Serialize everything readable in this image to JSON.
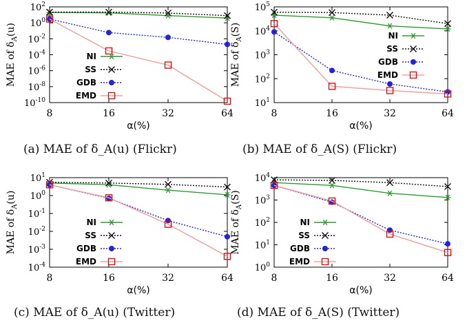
{
  "colors": {
    "NI": "#2e9a2e",
    "SS": "#111111",
    "GDB": "#2323d8",
    "EMD": "#f0a0a0",
    "EMD_marker": "#e01010"
  },
  "captions": [
    "(a) MAE of δ_A(u) (Flickr)",
    "(b) MAE of δ_A(S) (Flickr)",
    "(c) MAE of δ_A(u) (Twitter)",
    "(d) MAE of δ_A(S) (Twitter)"
  ],
  "chart_data": [
    {
      "type": "line",
      "x": [
        8,
        16,
        32,
        64
      ],
      "xticks": [
        "8",
        "16",
        "32",
        "64"
      ],
      "xlabel": "α(%)",
      "ylabel_main": "MAE of δ",
      "ylabel_sub": "A",
      "ylabel_arg": "(u)",
      "yscale": "log",
      "ylim": [
        1e-10,
        100
      ],
      "yticks": [
        {
          "base": "10",
          "exp": "2"
        },
        {
          "base": "10",
          "exp": "0"
        },
        {
          "base": "10",
          "exp": "-2"
        },
        {
          "base": "10",
          "exp": "-4"
        },
        {
          "base": "10",
          "exp": "-6"
        },
        {
          "base": "10",
          "exp": "-8"
        },
        {
          "base": "10",
          "exp": "-10"
        }
      ],
      "ytick_exponents": [
        2,
        0,
        -2,
        -4,
        -6,
        -8,
        -10
      ],
      "legend_position": "left",
      "series": [
        {
          "name": "NI",
          "marker": "asterisk",
          "dash": "solid",
          "values": [
            20,
            18,
            8,
            4
          ]
        },
        {
          "name": "SS",
          "marker": "x",
          "dash": "dotted",
          "values": [
            22,
            22,
            17,
            8
          ]
        },
        {
          "name": "GDB",
          "marker": "dot",
          "dash": "dotted",
          "values": [
            3,
            0.06,
            0.015,
            0.002
          ]
        },
        {
          "name": "EMD",
          "marker": "square",
          "dash": "solid",
          "values": [
            3,
            0.0003,
            5e-06,
            1.5e-10
          ]
        }
      ]
    },
    {
      "type": "line",
      "x": [
        8,
        16,
        32,
        64
      ],
      "xticks": [
        "8",
        "16",
        "32",
        "64"
      ],
      "xlabel": "α(%)",
      "ylabel_main": "MAE of δ",
      "ylabel_sub": "A",
      "ylabel_arg": "(S)",
      "yscale": "log",
      "ylim": [
        10,
        100000
      ],
      "yticks": [
        {
          "base": "10",
          "exp": "5"
        },
        {
          "base": "10",
          "exp": "4"
        },
        {
          "base": "10",
          "exp": "3"
        },
        {
          "base": "10",
          "exp": "2"
        },
        {
          "base": "10",
          "exp": "1"
        }
      ],
      "ytick_exponents": [
        5,
        4,
        3,
        2,
        1
      ],
      "legend_position": "right",
      "series": [
        {
          "name": "NI",
          "marker": "asterisk",
          "dash": "solid",
          "values": [
            45000,
            35000,
            16000,
            12000
          ]
        },
        {
          "name": "SS",
          "marker": "x",
          "dash": "dotted",
          "values": [
            60000,
            58000,
            45000,
            20000
          ]
        },
        {
          "name": "GDB",
          "marker": "dot",
          "dash": "dotted",
          "values": [
            9000,
            220,
            60,
            28
          ]
        },
        {
          "name": "EMD",
          "marker": "square",
          "dash": "solid",
          "values": [
            20000,
            48,
            32,
            23
          ]
        }
      ]
    },
    {
      "type": "line",
      "x": [
        8,
        16,
        32,
        64
      ],
      "xticks": [
        "8",
        "16",
        "32",
        "64"
      ],
      "xlabel": "α(%)",
      "ylabel_main": "MAE of δ",
      "ylabel_sub": "A",
      "ylabel_arg": "(u)",
      "yscale": "log",
      "ylim": [
        0.0001,
        10
      ],
      "yticks": [
        {
          "base": "10",
          "exp": "1"
        },
        {
          "base": "10",
          "exp": "0"
        },
        {
          "base": "10",
          "exp": "-1"
        },
        {
          "base": "10",
          "exp": "-2"
        },
        {
          "base": "10",
          "exp": "-3"
        },
        {
          "base": "10",
          "exp": "-4"
        }
      ],
      "ytick_exponents": [
        1,
        0,
        -1,
        -2,
        -3,
        -4
      ],
      "legend_position": "left",
      "series": [
        {
          "name": "NI",
          "marker": "asterisk",
          "dash": "solid",
          "values": [
            5,
            4,
            2,
            1.1
          ]
        },
        {
          "name": "SS",
          "marker": "x",
          "dash": "dotted",
          "values": [
            5.5,
            5,
            4.2,
            3
          ]
        },
        {
          "name": "GDB",
          "marker": "dot",
          "dash": "dotted",
          "values": [
            4,
            0.7,
            0.04,
            0.005
          ]
        },
        {
          "name": "EMD",
          "marker": "square",
          "dash": "solid",
          "values": [
            4,
            0.75,
            0.025,
            0.0004
          ]
        }
      ]
    },
    {
      "type": "line",
      "x": [
        8,
        16,
        32,
        64
      ],
      "xticks": [
        "8",
        "16",
        "32",
        "64"
      ],
      "xlabel": "α(%)",
      "ylabel_main": "MAE of δ",
      "ylabel_sub": "A",
      "ylabel_arg": "(S)",
      "yscale": "log",
      "ylim": [
        1,
        10000
      ],
      "yticks": [
        {
          "base": "10",
          "exp": "4"
        },
        {
          "base": "10",
          "exp": "3"
        },
        {
          "base": "10",
          "exp": "2"
        },
        {
          "base": "10",
          "exp": "1"
        },
        {
          "base": "10",
          "exp": "0"
        }
      ],
      "ytick_exponents": [
        4,
        3,
        2,
        1,
        0
      ],
      "legend_position": "left",
      "series": [
        {
          "name": "NI",
          "marker": "asterisk",
          "dash": "solid",
          "values": [
            6000,
            4500,
            2000,
            1300
          ]
        },
        {
          "name": "SS",
          "marker": "x",
          "dash": "dotted",
          "values": [
            8000,
            7500,
            6000,
            4000
          ]
        },
        {
          "name": "GDB",
          "marker": "dot",
          "dash": "dotted",
          "values": [
            4500,
            800,
            45,
            11
          ]
        },
        {
          "name": "EMD",
          "marker": "square",
          "dash": "solid",
          "values": [
            4500,
            900,
            30,
            4.5
          ]
        }
      ]
    }
  ]
}
